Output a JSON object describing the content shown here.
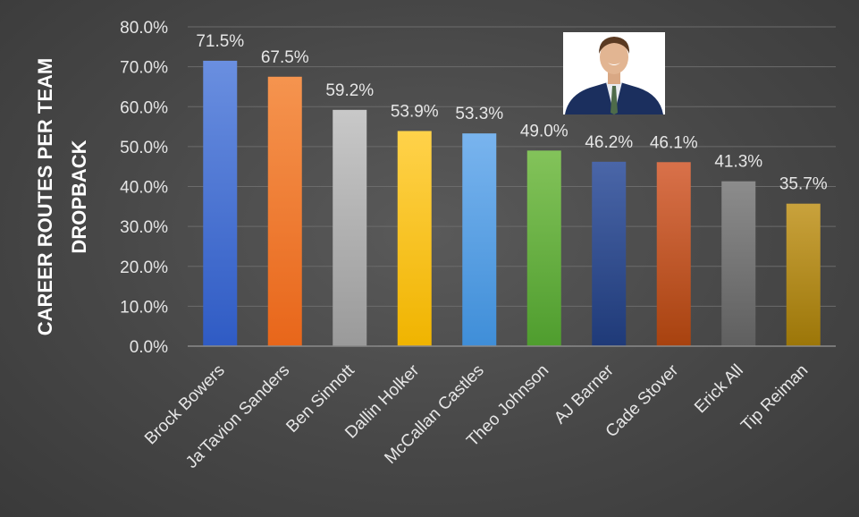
{
  "chart_data": {
    "type": "bar",
    "title": "",
    "xlabel": "",
    "ylabel_line1": "CAREER ROUTES PER TEAM",
    "ylabel_line2": "DROPBACK",
    "ylim": [
      0,
      80
    ],
    "yticks": [
      0,
      10,
      20,
      30,
      40,
      50,
      60,
      70,
      80
    ],
    "ytick_labels": [
      "0.0%",
      "10.0%",
      "20.0%",
      "30.0%",
      "40.0%",
      "50.0%",
      "60.0%",
      "70.0%",
      "80.0%"
    ],
    "grid": true,
    "legend": "none",
    "categories": [
      "Brock Bowers",
      "Ja'Tavion Sanders",
      "Ben Sinnott",
      "Dallin Holker",
      "McCallan Castles",
      "Theo Johnson",
      "AJ Barner",
      "Cade Stover",
      "Erick All",
      "Tip Reiman"
    ],
    "values": [
      71.5,
      67.5,
      59.2,
      53.9,
      53.3,
      49.0,
      46.2,
      46.1,
      41.3,
      35.7
    ],
    "value_labels": [
      "71.5%",
      "67.5%",
      "59.2%",
      "53.9%",
      "53.3%",
      "49.0%",
      "46.2%",
      "46.1%",
      "41.3%",
      "35.7%"
    ],
    "bar_colors": [
      [
        "#6a8fe0",
        "#2f5bc4"
      ],
      [
        "#f5944f",
        "#e8661a"
      ],
      [
        "#c8c8c8",
        "#9a9a9a"
      ],
      [
        "#ffd24a",
        "#f0b400"
      ],
      [
        "#79b4ee",
        "#3f8ed8"
      ],
      [
        "#83c35a",
        "#4f9d2e"
      ],
      [
        "#4a66a8",
        "#1f3a78"
      ],
      [
        "#d9714a",
        "#a8420f"
      ],
      [
        "#8c8c8c",
        "#5f5f5f"
      ],
      [
        "#c9a23c",
        "#9c7608"
      ]
    ]
  },
  "colors": {
    "gridline": "#6b6b6b",
    "axis": "#8a8a8a"
  },
  "icons": {
    "headshot": "player-headshot-icon"
  }
}
